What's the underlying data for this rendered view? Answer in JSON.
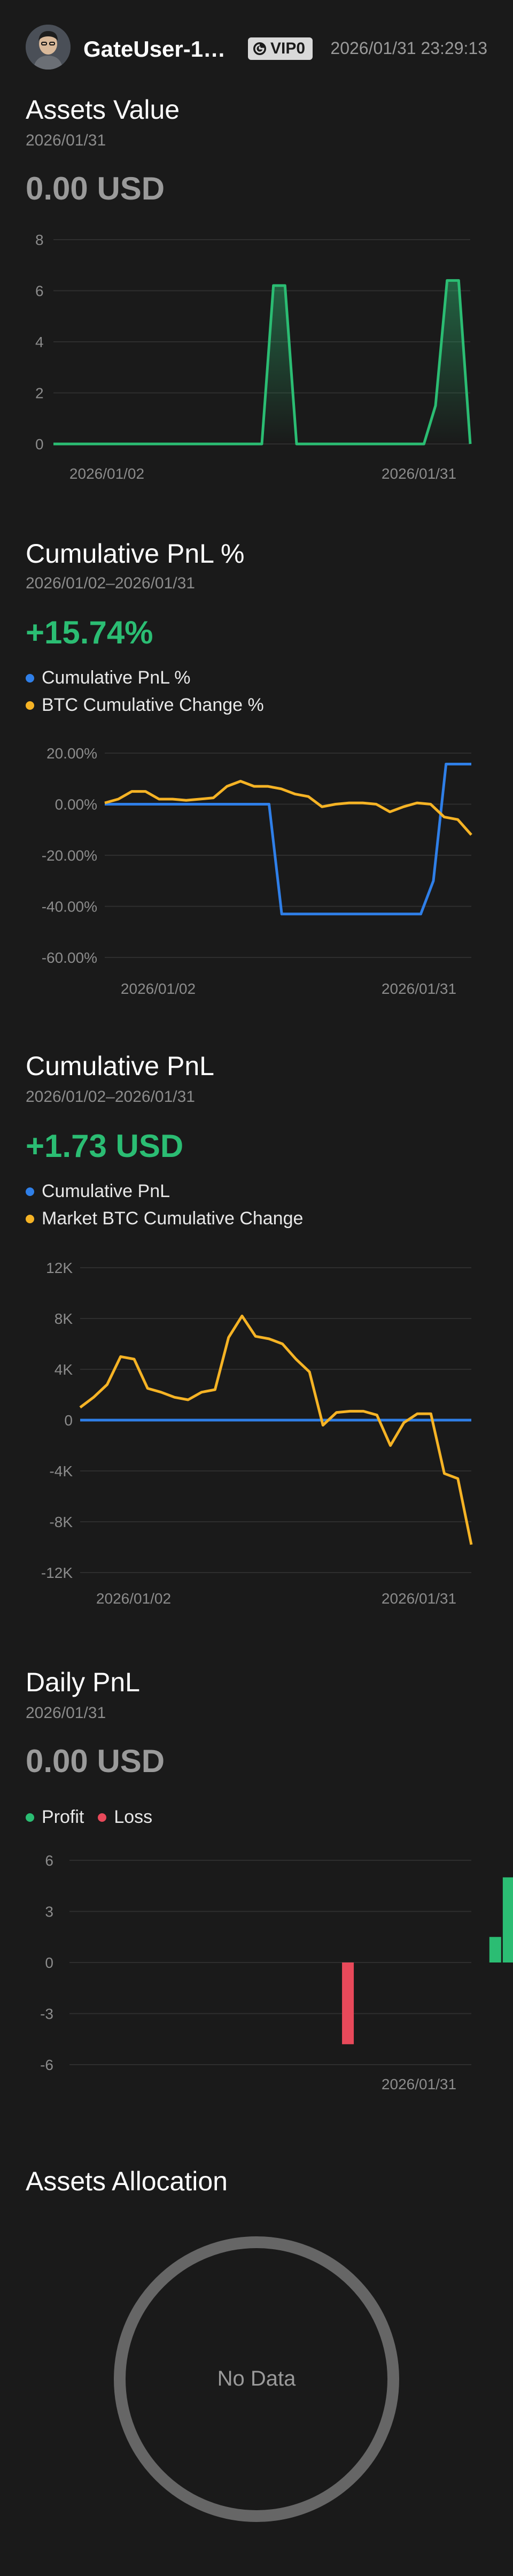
{
  "header": {
    "username": "GateUser-1…",
    "vip_label": "VIP0",
    "timestamp": "2026/01/31 23:29:13"
  },
  "assets_value": {
    "title": "Assets Value",
    "date": "2026/01/31",
    "value": "0.00 USD",
    "accent": "#2bbd73",
    "chart_data": {
      "type": "area",
      "yticks": [
        "8",
        "6",
        "4",
        "2",
        "0"
      ],
      "ylim": [
        0,
        8
      ],
      "xlabels": [
        "2026/01/02",
        "2026/01/31"
      ],
      "values": [
        0,
        0,
        0,
        0,
        0,
        0,
        0,
        0,
        0,
        0,
        0,
        0,
        0,
        0,
        0,
        0,
        0,
        0,
        0,
        6.2,
        6.2,
        0,
        0,
        0,
        0,
        0,
        0,
        0,
        0,
        0,
        0,
        0,
        0,
        1.5,
        6.4,
        6.4,
        0
      ]
    }
  },
  "cumulative_pnl_pct": {
    "title": "Cumulative PnL %",
    "date": "2026/01/02–2026/01/31",
    "value": "+15.74%",
    "legend": [
      {
        "label": "Cumulative PnL %",
        "color": "#2f7fe8"
      },
      {
        "label": "BTC Cumulative Change %",
        "color": "#f5b325"
      }
    ],
    "chart_data": {
      "type": "line",
      "yticks": [
        "20.00%",
        "0.00%",
        "-20.00%",
        "-40.00%",
        "-60.00%"
      ],
      "ylim": [
        -60,
        20
      ],
      "xlabels": [
        "2026/01/02",
        "2026/01/31"
      ],
      "series": [
        {
          "name": "Cumulative PnL %",
          "color": "#2f7fe8",
          "values": [
            0,
            0,
            0,
            0,
            0,
            0,
            0,
            0,
            0,
            0,
            0,
            0,
            0,
            0,
            -43,
            -43,
            -43,
            -43,
            -43,
            -43,
            -43,
            -43,
            -43,
            -43,
            -43,
            -43,
            -30,
            15.7,
            15.7,
            15.7
          ]
        },
        {
          "name": "BTC Cumulative Change %",
          "color": "#f5b325",
          "values": [
            0.5,
            2,
            5,
            5,
            2,
            2,
            1.5,
            2,
            2.5,
            7,
            9,
            7,
            7,
            6,
            4,
            3,
            -1,
            0,
            0.5,
            0.5,
            0,
            -3,
            -1,
            0.5,
            0,
            -5,
            -6,
            -12
          ]
        }
      ]
    }
  },
  "cumulative_pnl": {
    "title": "Cumulative PnL",
    "date": "2026/01/02–2026/01/31",
    "value": "+1.73 USD",
    "legend": [
      {
        "label": "Cumulative PnL",
        "color": "#2f7fe8"
      },
      {
        "label": "Market BTC Cumulative Change",
        "color": "#f5b325"
      }
    ],
    "chart_data": {
      "type": "line",
      "yticks": [
        "12K",
        "8K",
        "4K",
        "0",
        "-4K",
        "-8K",
        "-12K"
      ],
      "ylim": [
        -12000,
        12000
      ],
      "xlabels": [
        "2026/01/02",
        "2026/01/31"
      ],
      "series": [
        {
          "name": "Cumulative PnL",
          "color": "#2f7fe8",
          "values": [
            0,
            0,
            0,
            0,
            0,
            0,
            0,
            0,
            0,
            0,
            0,
            0,
            0,
            0,
            0,
            0,
            0,
            0,
            0,
            0,
            0,
            0,
            0,
            0,
            0,
            0,
            0,
            0,
            0,
            0
          ]
        },
        {
          "name": "Market BTC Cumulative Change",
          "color": "#f5b325",
          "values": [
            1000,
            1800,
            2800,
            5000,
            4800,
            2500,
            2200,
            1800,
            1600,
            2200,
            2400,
            6500,
            8200,
            6600,
            6400,
            6000,
            4800,
            3800,
            -400,
            600,
            700,
            700,
            400,
            -2000,
            -200,
            500,
            500,
            -4200,
            -4600,
            -9800
          ]
        }
      ]
    }
  },
  "daily_pnl": {
    "title": "Daily PnL",
    "date": "2026/01/31",
    "value": "0.00 USD",
    "legend": [
      {
        "label": "Profit",
        "color": "#2bbd73"
      },
      {
        "label": "Loss",
        "color": "#e8495a"
      }
    ],
    "chart_data": {
      "type": "bar",
      "yticks": [
        "6",
        "3",
        "0",
        "-3",
        "-6"
      ],
      "ylim": [
        -6,
        6
      ],
      "xlabels": [
        "2026/01/31"
      ],
      "values": [
        0,
        0,
        0,
        0,
        0,
        0,
        0,
        0,
        0,
        0,
        0,
        0,
        0,
        0,
        0,
        0,
        -4.8,
        0,
        0,
        0,
        0,
        0,
        0,
        0,
        0,
        0,
        0,
        1.5,
        5
      ]
    }
  },
  "assets_allocation": {
    "title": "Assets Allocation",
    "empty_label": "No Data"
  }
}
